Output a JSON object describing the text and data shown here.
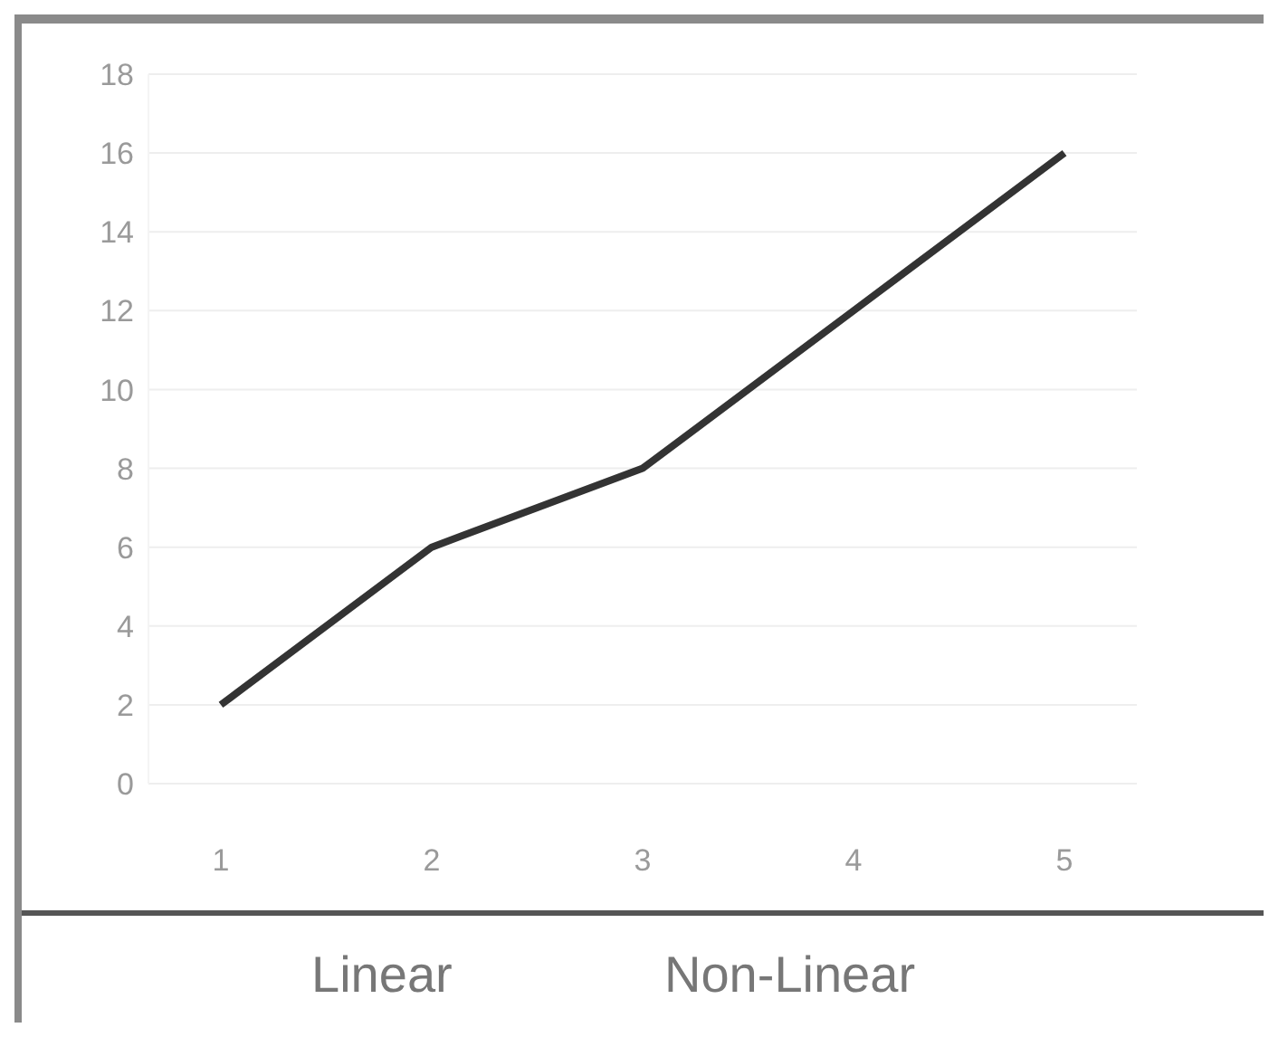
{
  "chart_data": {
    "type": "line",
    "categories": [
      "1",
      "2",
      "3",
      "4",
      "5"
    ],
    "series": [
      {
        "color": "#333333",
        "values": [
          2,
          6,
          8,
          12,
          16
        ]
      }
    ],
    "ylim": [
      0,
      18
    ],
    "yticks": [
      0,
      2,
      4,
      6,
      8,
      10,
      12,
      14,
      16,
      18
    ],
    "grid": "y",
    "marker": "none",
    "line_style": "solid",
    "legend": false,
    "annotations": [
      "Linear",
      "Non-Linear"
    ]
  }
}
